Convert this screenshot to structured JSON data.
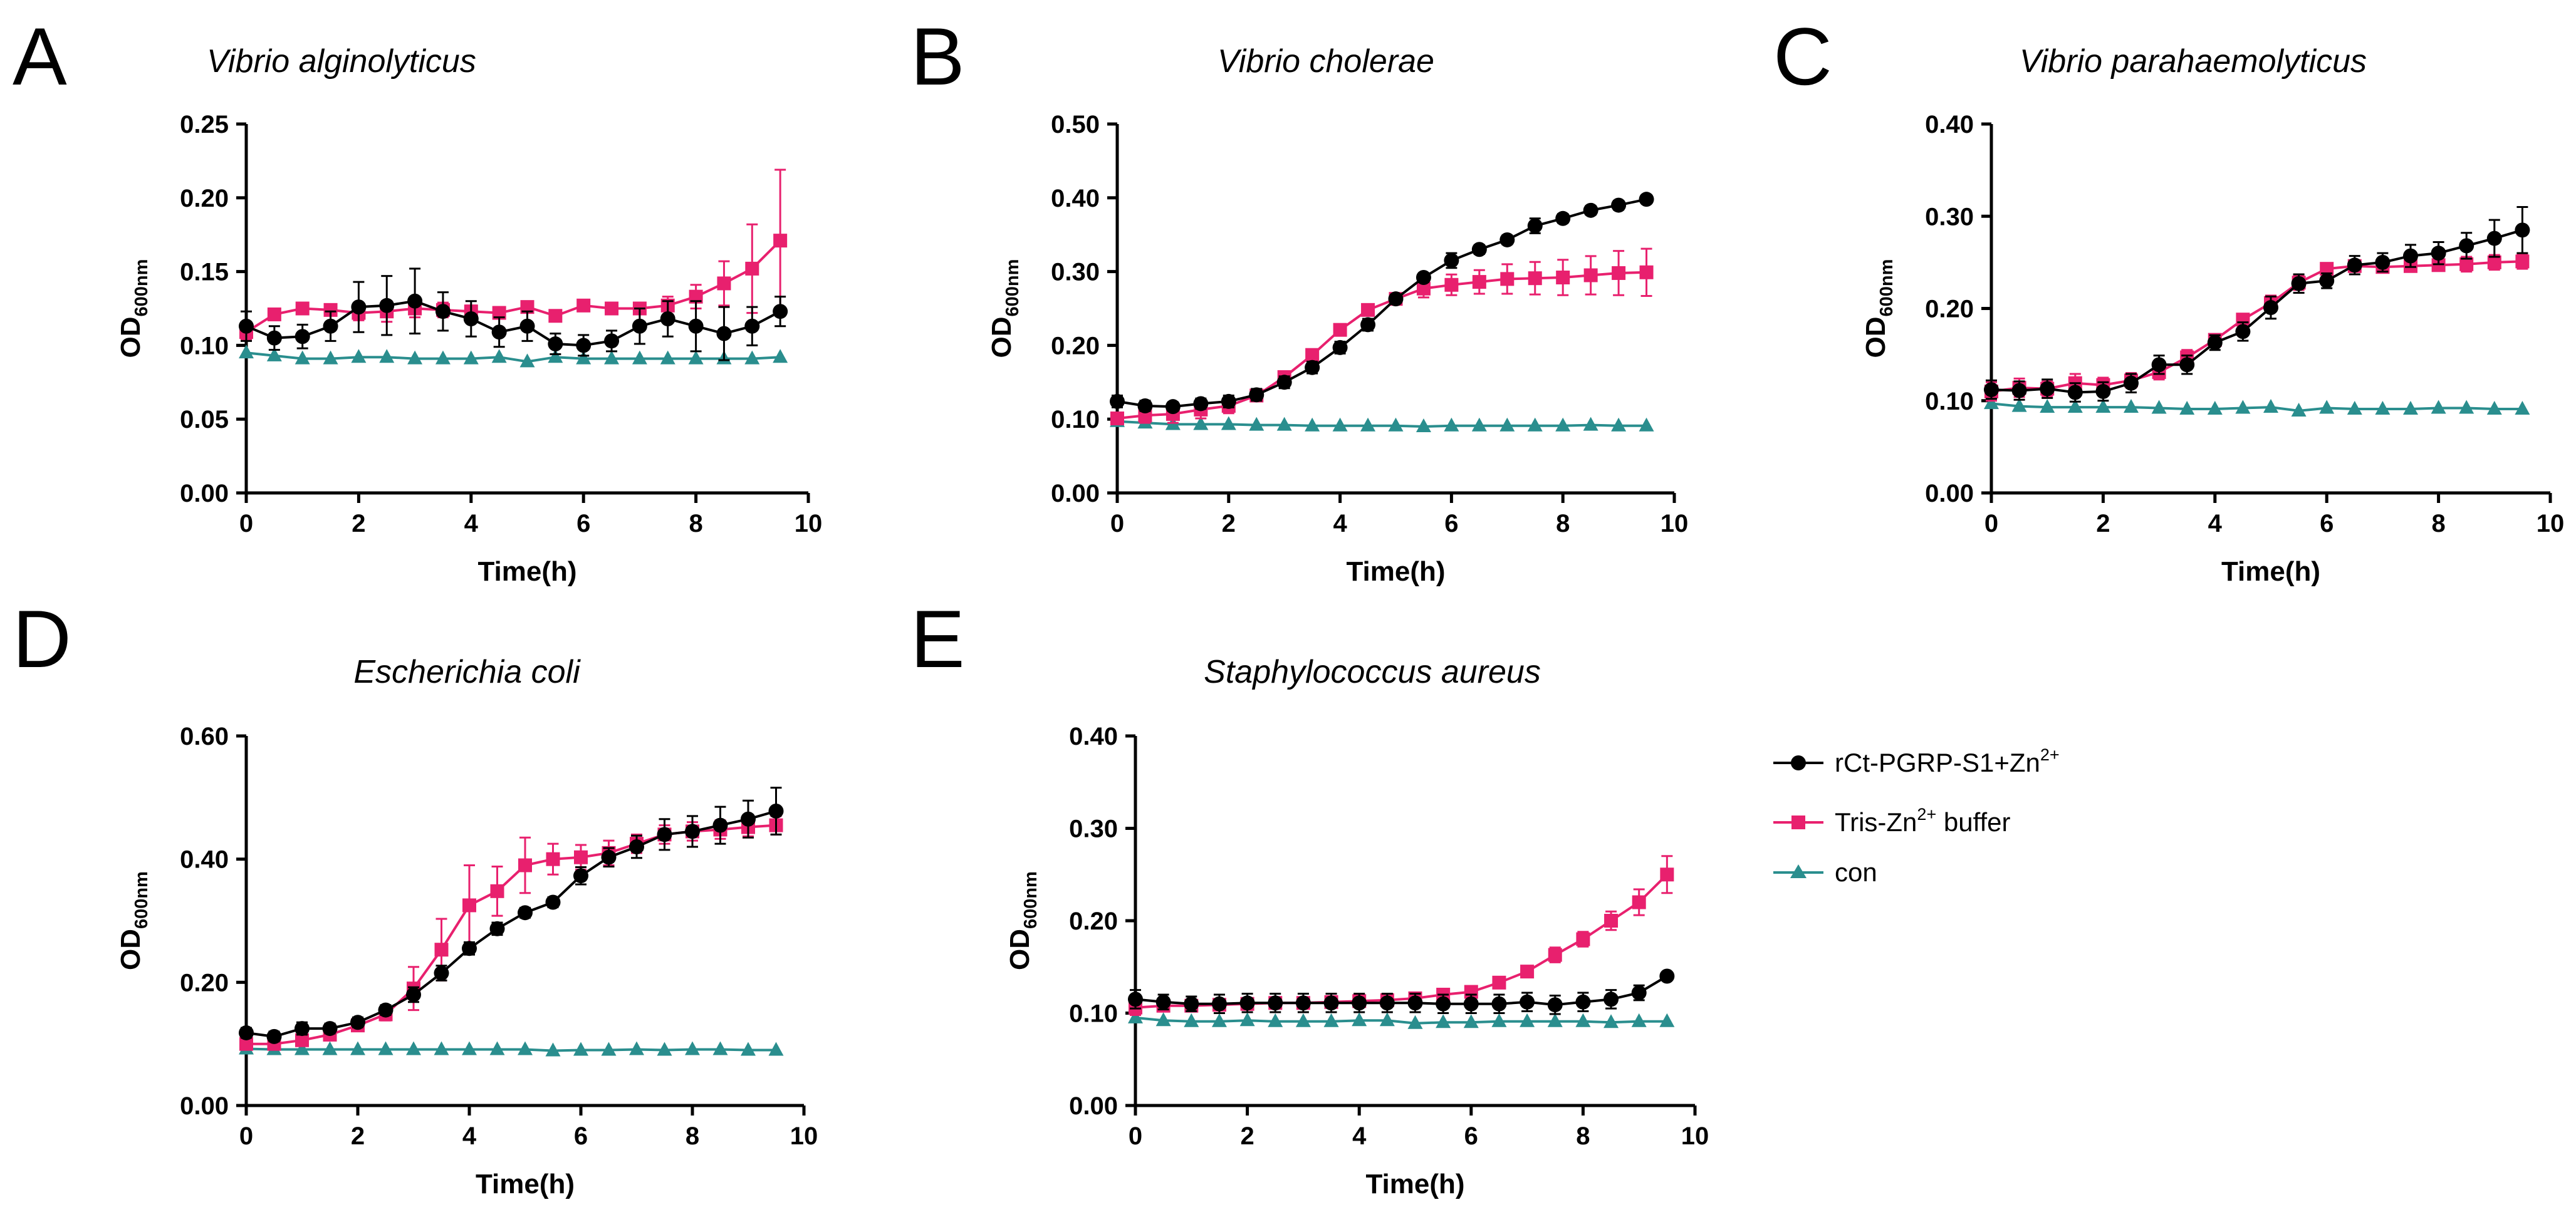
{
  "figure": {
    "legend": {
      "entries": [
        {
          "label_main": "rCt-PGRP-S1+Zn",
          "label_sup": "2+",
          "label_after": "",
          "marker": "circle"
        },
        {
          "label_main": "Tris-Zn",
          "label_sup": "2+",
          "label_after": " buffer",
          "marker": "square"
        },
        {
          "label_main": "con",
          "label_sup": "",
          "label_after": "",
          "marker": "triangle"
        }
      ]
    }
  },
  "colors": {
    "series": [
      "#000000",
      "#e8206e",
      "#2a8e8e"
    ],
    "axis": "#000000",
    "background": "#ffffff"
  },
  "chart_data": [
    {
      "panel": "A",
      "type": "line",
      "title": "Vibrio alginolyticus",
      "xlabel": "Time(h)",
      "ylabel_main": "OD",
      "ylabel_sub": "600nm",
      "xlim": [
        0,
        10
      ],
      "ylim": [
        0,
        0.25
      ],
      "xticks": [
        0,
        2,
        4,
        6,
        8,
        10
      ],
      "xtick_labels": [
        "0",
        "2",
        "4",
        "6",
        "8",
        "10"
      ],
      "yticks": [
        0,
        0.05,
        0.1,
        0.15,
        0.2,
        0.25
      ],
      "ytick_labels": [
        "0.00",
        "0.05",
        "0.10",
        "0.15",
        "0.20",
        "0.25"
      ],
      "x": [
        0,
        0.5,
        1,
        1.5,
        2,
        2.5,
        3,
        3.5,
        4,
        4.5,
        5,
        5.5,
        6,
        6.5,
        7,
        7.5,
        8,
        8.5,
        9,
        9.5
      ],
      "series": [
        {
          "name": "rCt-PGRP-S1+Zn2+",
          "values": [
            0.113,
            0.105,
            0.106,
            0.113,
            0.126,
            0.127,
            0.13,
            0.123,
            0.118,
            0.109,
            0.113,
            0.101,
            0.1,
            0.103,
            0.113,
            0.118,
            0.113,
            0.108,
            0.113,
            0.123
          ],
          "errors": [
            0.01,
            0.008,
            0.008,
            0.01,
            0.017,
            0.02,
            0.022,
            0.013,
            0.012,
            0.01,
            0.01,
            0.007,
            0.007,
            0.007,
            0.012,
            0.012,
            0.017,
            0.018,
            0.013,
            0.01
          ]
        },
        {
          "name": "Tris-Zn2+ buffer",
          "values": [
            0.109,
            0.121,
            0.125,
            0.124,
            0.122,
            0.123,
            0.125,
            0.124,
            0.123,
            0.122,
            0.126,
            0.12,
            0.127,
            0.125,
            0.125,
            0.127,
            0.133,
            0.142,
            0.152,
            0.171
          ],
          "errors": [
            0.005,
            0.004,
            0.003,
            0.003,
            0.005,
            0.007,
            0.006,
            0.005,
            0.004,
            0.004,
            0.003,
            0.003,
            0.003,
            0.003,
            0.004,
            0.006,
            0.008,
            0.015,
            0.03,
            0.048
          ]
        },
        {
          "name": "con",
          "values": [
            0.095,
            0.093,
            0.091,
            0.091,
            0.092,
            0.092,
            0.091,
            0.091,
            0.091,
            0.092,
            0.089,
            0.092,
            0.091,
            0.091,
            0.091,
            0.091,
            0.091,
            0.091,
            0.091,
            0.092
          ],
          "errors": [
            0,
            0,
            0,
            0,
            0,
            0,
            0,
            0,
            0,
            0,
            0,
            0,
            0,
            0,
            0,
            0,
            0,
            0,
            0,
            0
          ]
        }
      ]
    },
    {
      "panel": "B",
      "type": "line",
      "title": "Vibrio cholerae",
      "xlabel": "Time(h)",
      "ylabel_main": "OD",
      "ylabel_sub": "600nm",
      "xlim": [
        0,
        10
      ],
      "ylim": [
        0,
        0.5
      ],
      "xticks": [
        0,
        2,
        4,
        6,
        8,
        10
      ],
      "xtick_labels": [
        "0",
        "2",
        "4",
        "6",
        "8",
        "10"
      ],
      "yticks": [
        0,
        0.1,
        0.2,
        0.3,
        0.4,
        0.5
      ],
      "ytick_labels": [
        "0.00",
        "0.10",
        "0.20",
        "0.30",
        "0.40",
        "0.50"
      ],
      "x": [
        0,
        0.5,
        1,
        1.5,
        2,
        2.5,
        3,
        3.5,
        4,
        4.5,
        5,
        5.5,
        6,
        6.5,
        7,
        7.5,
        8,
        8.5,
        9,
        9.5
      ],
      "series": [
        {
          "name": "rCt-PGRP-S1+Zn2+",
          "values": [
            0.124,
            0.118,
            0.117,
            0.121,
            0.124,
            0.133,
            0.15,
            0.17,
            0.197,
            0.228,
            0.263,
            0.292,
            0.315,
            0.33,
            0.343,
            0.362,
            0.372,
            0.383,
            0.39,
            0.398
          ],
          "errors": [
            0.008,
            0.007,
            0.006,
            0.007,
            0.008,
            0.008,
            0.008,
            0.008,
            0.008,
            0.008,
            0.006,
            0.006,
            0.01,
            0.006,
            0.006,
            0.01,
            0.006,
            0.006,
            0.006,
            0.004
          ]
        },
        {
          "name": "Tris-Zn2+ buffer",
          "values": [
            0.101,
            0.105,
            0.107,
            0.113,
            0.118,
            0.132,
            0.157,
            0.187,
            0.221,
            0.248,
            0.263,
            0.277,
            0.282,
            0.286,
            0.29,
            0.291,
            0.292,
            0.295,
            0.298,
            0.299
          ],
          "errors": [
            0.006,
            0.01,
            0.012,
            0.012,
            0.01,
            0.008,
            0.006,
            0.006,
            0.006,
            0.006,
            0.006,
            0.012,
            0.014,
            0.016,
            0.02,
            0.022,
            0.024,
            0.026,
            0.03,
            0.032
          ]
        },
        {
          "name": "con",
          "values": [
            0.097,
            0.095,
            0.093,
            0.093,
            0.093,
            0.092,
            0.092,
            0.091,
            0.091,
            0.091,
            0.091,
            0.09,
            0.091,
            0.091,
            0.091,
            0.091,
            0.091,
            0.092,
            0.091,
            0.091
          ],
          "errors": [
            0,
            0,
            0,
            0,
            0,
            0,
            0,
            0,
            0,
            0,
            0,
            0,
            0,
            0,
            0,
            0,
            0,
            0,
            0,
            0
          ]
        }
      ]
    },
    {
      "panel": "C",
      "type": "line",
      "title": "Vibrio parahaemolyticus",
      "xlabel": "Time(h)",
      "ylabel_main": "OD",
      "ylabel_sub": "600nm",
      "xlim": [
        0,
        10
      ],
      "ylim": [
        0,
        0.4
      ],
      "xticks": [
        0,
        2,
        4,
        6,
        8,
        10
      ],
      "xtick_labels": [
        "0",
        "2",
        "4",
        "6",
        "8",
        "10"
      ],
      "yticks": [
        0,
        0.1,
        0.2,
        0.3,
        0.4
      ],
      "ytick_labels": [
        "0.00",
        "0.10",
        "0.20",
        "0.30",
        "0.40"
      ],
      "x": [
        0,
        0.5,
        1,
        1.5,
        2,
        2.5,
        3,
        3.5,
        4,
        4.5,
        5,
        5.5,
        6,
        6.5,
        7,
        7.5,
        8,
        8.5,
        9,
        9.5
      ],
      "series": [
        {
          "name": "rCt-PGRP-S1+Zn2+",
          "values": [
            0.112,
            0.111,
            0.113,
            0.109,
            0.11,
            0.119,
            0.139,
            0.139,
            0.163,
            0.175,
            0.201,
            0.227,
            0.23,
            0.247,
            0.25,
            0.257,
            0.26,
            0.268,
            0.276,
            0.285
          ],
          "errors": [
            0.01,
            0.01,
            0.01,
            0.01,
            0.01,
            0.01,
            0.01,
            0.01,
            0.008,
            0.01,
            0.012,
            0.01,
            0.008,
            0.01,
            0.01,
            0.012,
            0.012,
            0.014,
            0.02,
            0.025
          ]
        },
        {
          "name": "Tris-Zn2+ buffer",
          "values": [
            0.11,
            0.114,
            0.113,
            0.119,
            0.117,
            0.122,
            0.131,
            0.147,
            0.166,
            0.188,
            0.206,
            0.228,
            0.243,
            0.246,
            0.245,
            0.246,
            0.247,
            0.248,
            0.25,
            0.251
          ],
          "errors": [
            0.01,
            0.01,
            0.008,
            0.01,
            0.008,
            0.008,
            0.008,
            0.008,
            0.006,
            0.006,
            0.008,
            0.008,
            0.006,
            0.006,
            0.006,
            0.006,
            0.006,
            0.008,
            0.008,
            0.008
          ]
        },
        {
          "name": "con",
          "values": [
            0.097,
            0.094,
            0.093,
            0.093,
            0.093,
            0.093,
            0.092,
            0.091,
            0.091,
            0.092,
            0.093,
            0.089,
            0.092,
            0.091,
            0.091,
            0.091,
            0.092,
            0.092,
            0.091,
            0.091
          ],
          "errors": [
            0,
            0,
            0,
            0,
            0,
            0,
            0,
            0,
            0,
            0,
            0,
            0,
            0,
            0,
            0,
            0,
            0,
            0,
            0,
            0
          ]
        }
      ]
    },
    {
      "panel": "D",
      "type": "line",
      "title": "Escherichia coli",
      "xlabel": "Time(h)",
      "ylabel_main": "OD",
      "ylabel_sub": "600nm",
      "xlim": [
        0,
        10
      ],
      "ylim": [
        0,
        0.6
      ],
      "xticks": [
        0,
        2,
        4,
        6,
        8,
        10
      ],
      "xtick_labels": [
        "0",
        "2",
        "4",
        "6",
        "8",
        "10"
      ],
      "yticks": [
        0,
        0.2,
        0.4,
        0.6
      ],
      "ytick_labels": [
        "0.00",
        "0.20",
        "0.40",
        "0.60"
      ],
      "x": [
        0,
        0.5,
        1,
        1.5,
        2,
        2.5,
        3,
        3.5,
        4,
        4.5,
        5,
        5.5,
        6,
        6.5,
        7,
        7.5,
        8,
        8.5,
        9,
        9.5
      ],
      "series": [
        {
          "name": "rCt-PGRP-S1+Zn2+",
          "values": [
            0.118,
            0.112,
            0.125,
            0.125,
            0.135,
            0.155,
            0.18,
            0.215,
            0.255,
            0.287,
            0.313,
            0.33,
            0.373,
            0.403,
            0.42,
            0.44,
            0.445,
            0.455,
            0.465,
            0.478
          ],
          "errors": [
            0.008,
            0.008,
            0.01,
            0.008,
            0.008,
            0.008,
            0.012,
            0.012,
            0.01,
            0.01,
            0.008,
            0.008,
            0.014,
            0.015,
            0.018,
            0.025,
            0.025,
            0.03,
            0.03,
            0.038
          ]
        },
        {
          "name": "Tris-Zn2+ buffer",
          "values": [
            0.1,
            0.1,
            0.106,
            0.115,
            0.13,
            0.148,
            0.19,
            0.253,
            0.325,
            0.348,
            0.39,
            0.4,
            0.403,
            0.41,
            0.425,
            0.44,
            0.445,
            0.448,
            0.452,
            0.455
          ],
          "errors": [
            0.005,
            0.006,
            0.008,
            0.008,
            0.008,
            0.01,
            0.035,
            0.05,
            0.065,
            0.04,
            0.045,
            0.025,
            0.02,
            0.02,
            0.015,
            0.015,
            0.015,
            0.015,
            0.015,
            0.015
          ]
        },
        {
          "name": "con",
          "values": [
            0.092,
            0.091,
            0.091,
            0.091,
            0.091,
            0.091,
            0.091,
            0.091,
            0.091,
            0.091,
            0.091,
            0.089,
            0.09,
            0.09,
            0.091,
            0.09,
            0.091,
            0.091,
            0.09,
            0.09
          ],
          "errors": [
            0,
            0,
            0,
            0,
            0,
            0,
            0,
            0,
            0,
            0,
            0,
            0,
            0,
            0,
            0,
            0,
            0,
            0,
            0,
            0
          ]
        }
      ]
    },
    {
      "panel": "E",
      "type": "line",
      "title": "Staphylococcus aureus",
      "xlabel": "Time(h)",
      "ylabel_main": "OD",
      "ylabel_sub": "600nm",
      "xlim": [
        0,
        10
      ],
      "ylim": [
        0,
        0.4
      ],
      "xticks": [
        0,
        2,
        4,
        6,
        8,
        10
      ],
      "xtick_labels": [
        "0",
        "2",
        "4",
        "6",
        "8",
        "10"
      ],
      "yticks": [
        0,
        0.1,
        0.2,
        0.3,
        0.4
      ],
      "ytick_labels": [
        "0.00",
        "0.10",
        "0.20",
        "0.30",
        "0.40"
      ],
      "x": [
        0,
        0.5,
        1,
        1.5,
        2,
        2.5,
        3,
        3.5,
        4,
        4.5,
        5,
        5.5,
        6,
        6.5,
        7,
        7.5,
        8,
        8.5,
        9,
        9.5
      ],
      "series": [
        {
          "name": "rCt-PGRP-S1+Zn2+",
          "values": [
            0.115,
            0.112,
            0.11,
            0.11,
            0.111,
            0.111,
            0.111,
            0.111,
            0.111,
            0.111,
            0.111,
            0.11,
            0.11,
            0.11,
            0.112,
            0.109,
            0.112,
            0.115,
            0.122,
            0.14
          ],
          "errors": [
            0.01,
            0.008,
            0.008,
            0.01,
            0.01,
            0.01,
            0.01,
            0.01,
            0.01,
            0.01,
            0.01,
            0.01,
            0.01,
            0.01,
            0.01,
            0.01,
            0.01,
            0.01,
            0.008,
            0.004
          ]
        },
        {
          "name": "Tris-Zn2+ buffer",
          "values": [
            0.106,
            0.108,
            0.108,
            0.109,
            0.11,
            0.111,
            0.111,
            0.112,
            0.113,
            0.114,
            0.116,
            0.12,
            0.123,
            0.133,
            0.145,
            0.163,
            0.18,
            0.2,
            0.22,
            0.25
          ],
          "errors": [
            0.008,
            0.006,
            0.006,
            0.006,
            0.006,
            0.006,
            0.006,
            0.006,
            0.006,
            0.006,
            0.004,
            0.004,
            0.004,
            0.004,
            0.006,
            0.008,
            0.008,
            0.01,
            0.014,
            0.02
          ]
        },
        {
          "name": "con",
          "values": [
            0.095,
            0.092,
            0.091,
            0.091,
            0.092,
            0.091,
            0.091,
            0.091,
            0.092,
            0.092,
            0.089,
            0.09,
            0.09,
            0.091,
            0.091,
            0.091,
            0.091,
            0.09,
            0.091,
            0.091
          ],
          "errors": [
            0,
            0,
            0,
            0,
            0,
            0,
            0,
            0,
            0,
            0,
            0,
            0,
            0,
            0,
            0,
            0,
            0,
            0,
            0,
            0
          ]
        }
      ]
    }
  ]
}
